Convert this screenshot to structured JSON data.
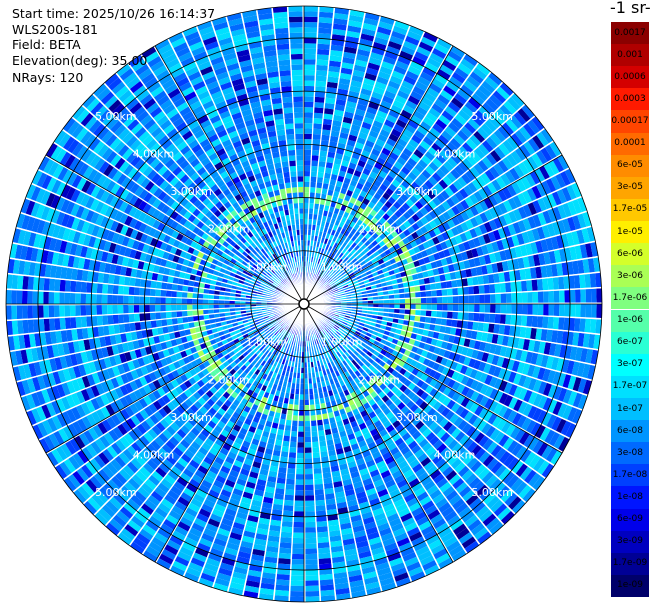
{
  "info": {
    "start_time": "Start time: 2025/10/26 16:14:37",
    "instrument": "WLS200s-181",
    "field": "Field: BETA",
    "elevation": "Elevation(deg): 35.00",
    "nrays": "NRays: 120"
  },
  "colorbar": {
    "title_fragment": "-1 sr-",
    "labels": [
      "0.0017",
      "0.001",
      "0.0006",
      "0.0003",
      "0.00017",
      "0.0001",
      "6e-05",
      "3e-05",
      "1.7e-05",
      "1e-05",
      "6e-06",
      "3e-06",
      "1.7e-06",
      "1e-06",
      "6e-07",
      "3e-07",
      "1.7e-07",
      "1e-07",
      "6e-08",
      "3e-08",
      "1.7e-08",
      "1e-08",
      "6e-09",
      "3e-09",
      "1.7e-09",
      "1e-09"
    ],
    "colors": [
      "#8b0000",
      "#b00000",
      "#d40000",
      "#ff1a00",
      "#ff4500",
      "#ff6a00",
      "#ff8c00",
      "#ffa500",
      "#ffc800",
      "#ffef00",
      "#d4ff2a",
      "#aaff55",
      "#7fff80",
      "#55ffaa",
      "#2affd4",
      "#00ffff",
      "#00e0ff",
      "#00bfff",
      "#0095ff",
      "#006aff",
      "#0040ff",
      "#0015ff",
      "#0000ea",
      "#0000c0",
      "#000095",
      "#00006a"
    ]
  },
  "chart_data": {
    "type": "ppi_polar",
    "field": "BETA",
    "elevation_deg": 35.0,
    "n_rays": 120,
    "range_rings_km": [
      1,
      2,
      3,
      4,
      5
    ],
    "range_ring_labels": [
      "1.00km",
      "2.00km",
      "3.00km",
      "4.00km",
      "5.00km"
    ],
    "max_range_km": 5.6,
    "color_scale": "log",
    "value_range": [
      1e-09,
      0.0017
    ],
    "dominant_value_approx": 6e-08,
    "annular_feature_value_approx": 1.7e-06
  }
}
